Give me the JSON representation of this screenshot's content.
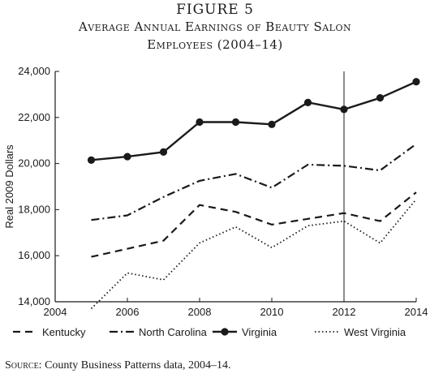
{
  "figure": {
    "label": "FIGURE 5",
    "title_line1": "Average Annual Earnings of Beauty Salon",
    "title_line2": "Employees (2004–14)"
  },
  "source": {
    "prefix": "Source:",
    "text": " County Business Patterns data, 2004–14."
  },
  "chart_data": {
    "type": "line",
    "title": "Average Annual Earnings of Beauty Salon Employees (2004–14)",
    "xlabel": "",
    "ylabel": "Real 2009 Dollars",
    "xlim": [
      2004,
      2014
    ],
    "ylim": [
      14000,
      24000
    ],
    "x_ticks": [
      2004,
      2006,
      2008,
      2010,
      2012,
      2014
    ],
    "y_ticks": [
      14000,
      16000,
      18000,
      20000,
      22000,
      24000
    ],
    "x_tick_labels": [
      "2004",
      "2006",
      "2008",
      "2010",
      "2012",
      "2014"
    ],
    "y_tick_labels": [
      "14,000",
      "16,000",
      "18,000",
      "20,000",
      "22,000",
      "24,000"
    ],
    "vertical_reference_x": 2012,
    "grid": false,
    "legend_position": "bottom",
    "x": [
      2005,
      2006,
      2007,
      2008,
      2009,
      2010,
      2011,
      2012,
      2013,
      2014
    ],
    "series": [
      {
        "name": "Kentucky",
        "style": "dashed",
        "color": "#1a1a1a",
        "values": [
          15950,
          16300,
          16650,
          18200,
          17900,
          17350,
          17600,
          17850,
          17500,
          18750
        ]
      },
      {
        "name": "North Carolina",
        "style": "dashdot",
        "color": "#1a1a1a",
        "values": [
          17550,
          17750,
          18550,
          19250,
          19550,
          18950,
          19950,
          19900,
          19700,
          20850
        ]
      },
      {
        "name": "Virginia",
        "style": "solid-markers",
        "color": "#1a1a1a",
        "values": [
          20150,
          20300,
          20500,
          21800,
          21800,
          21700,
          22650,
          22350,
          22850,
          23550
        ]
      },
      {
        "name": "West Virginia",
        "style": "dotted",
        "color": "#1a1a1a",
        "values": [
          13700,
          15250,
          14950,
          16550,
          17250,
          16350,
          17300,
          17500,
          16550,
          18450
        ]
      }
    ]
  }
}
